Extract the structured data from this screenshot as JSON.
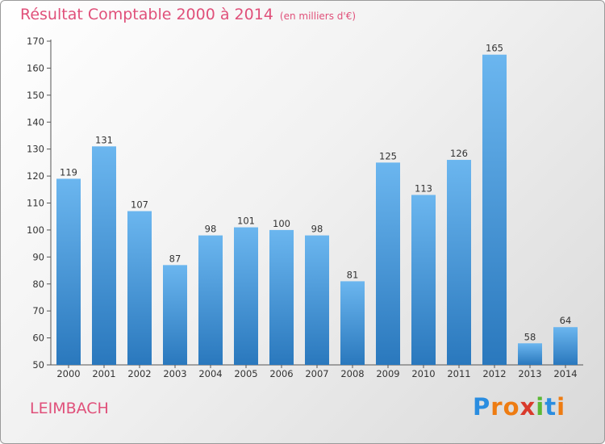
{
  "title": "Résultat Comptable 2000 à 2014",
  "unit_note": "(en milliers d'€)",
  "commune": "LEIMBACH",
  "logo": {
    "letters": [
      "P",
      "r",
      "o",
      "x",
      "i",
      "t",
      "i"
    ],
    "colors": [
      "#2a8de0",
      "#ee7c12",
      "#ee7c12",
      "#d93a2c",
      "#5bb834",
      "#2a8de0",
      "#ee7c12"
    ]
  },
  "colors": {
    "bar_light": "#6bb6ef",
    "bar_dark": "#2a78bd",
    "title": "#e0507a"
  },
  "chart_data": {
    "type": "bar",
    "title": "Résultat Comptable 2000 à 2014",
    "categories": [
      "2000",
      "2001",
      "2002",
      "2003",
      "2004",
      "2005",
      "2006",
      "2007",
      "2008",
      "2009",
      "2010",
      "2011",
      "2012",
      "2013",
      "2014"
    ],
    "values": [
      119,
      131,
      107,
      87,
      98,
      101,
      100,
      98,
      81,
      125,
      113,
      126,
      165,
      58,
      64
    ],
    "ylim": [
      50,
      170
    ],
    "yticks": [
      50,
      60,
      70,
      80,
      90,
      100,
      110,
      120,
      130,
      140,
      150,
      160,
      170
    ],
    "grid": false,
    "legend": "none"
  }
}
